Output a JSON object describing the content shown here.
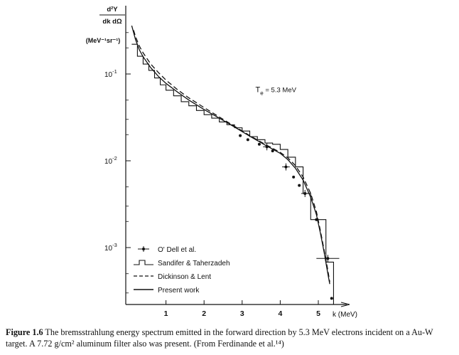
{
  "chart_data": {
    "type": "line",
    "title": "",
    "xlabel": "k (MeV)",
    "ylabel": {
      "numerator": "d²Y",
      "denominator": "dk dΩ",
      "units": "(MeV⁻¹sr⁻¹)"
    },
    "xlim": [
      0,
      5.7
    ],
    "ylim": [
      0.00015,
      0.4
    ],
    "yscale": "log",
    "x_ticks": [
      1,
      2,
      3,
      4,
      5
    ],
    "x_tick_labels": [
      "1",
      "2",
      "3",
      "4",
      "5"
    ],
    "y_ticks": [
      0.1,
      0.01,
      0.001
    ],
    "y_tick_labels": [
      {
        "base": "10",
        "exp": "-1"
      },
      {
        "base": "10",
        "exp": "-2"
      },
      {
        "base": "10",
        "exp": "-3"
      }
    ],
    "grid": false,
    "legend_position": "bottom-left",
    "annotation": {
      "main": "T",
      "sub": "e",
      "rest": " = 5.3 MeV",
      "x": 3.35,
      "y": 0.062
    },
    "series": [
      {
        "name": "O' Dell et al.",
        "kind": "points",
        "points": [
          [
            2.95,
            0.0195
          ],
          [
            3.15,
            0.0175
          ],
          [
            3.45,
            0.0155
          ],
          [
            3.65,
            0.0145
          ],
          [
            3.8,
            0.013
          ],
          [
            4.15,
            0.0085
          ],
          [
            4.35,
            0.0065
          ],
          [
            4.5,
            0.0052
          ],
          [
            4.65,
            0.0042
          ],
          [
            4.95,
            0.0021
          ],
          [
            5.25,
            0.00075
          ],
          [
            5.35,
            0.00026
          ]
        ],
        "xerr_points": [
          [
            3.65,
            0.0145,
            0.1
          ],
          [
            4.15,
            0.0085,
            0.1
          ],
          [
            4.65,
            0.0042,
            0.1
          ],
          [
            5.25,
            0.00075,
            0.3
          ]
        ]
      },
      {
        "name": "Sandifer & Taherzadeh",
        "kind": "step",
        "edges": [
          0.1,
          0.25,
          0.4,
          0.55,
          0.7,
          0.85,
          1.0,
          1.2,
          1.4,
          1.6,
          1.8,
          2.0,
          2.2,
          2.4,
          2.6,
          2.8,
          3.0,
          3.2,
          3.4,
          3.6,
          3.8,
          4.0,
          4.2,
          4.4,
          4.6,
          4.8,
          5.0,
          5.2,
          5.4
        ],
        "values": [
          0.22,
          0.16,
          0.13,
          0.11,
          0.09,
          0.075,
          0.065,
          0.056,
          0.048,
          0.043,
          0.038,
          0.034,
          0.031,
          0.028,
          0.026,
          0.024,
          0.022,
          0.019,
          0.0175,
          0.016,
          0.0155,
          0.0135,
          0.011,
          0.0085,
          0.0042,
          0.0021,
          0.0021,
          0.00068
        ]
      },
      {
        "name": "Dickinson & Lent",
        "kind": "dashed",
        "x": [
          0.15,
          0.2,
          0.3,
          0.4,
          0.6,
          0.8,
          1.0,
          1.3,
          1.6,
          2.0,
          2.4,
          2.8,
          3.2,
          3.6,
          4.0,
          4.2,
          4.4,
          4.6,
          4.8,
          4.95,
          5.05,
          5.15,
          5.25,
          5.3
        ],
        "y": [
          0.32,
          0.27,
          0.21,
          0.175,
          0.13,
          0.104,
          0.085,
          0.066,
          0.053,
          0.041,
          0.032,
          0.025,
          0.0195,
          0.0155,
          0.0125,
          0.0108,
          0.0088,
          0.0065,
          0.0042,
          0.0026,
          0.0016,
          0.00095,
          0.00055,
          0.0004
        ]
      },
      {
        "name": "Present work",
        "kind": "solid",
        "x": [
          0.1,
          0.2,
          0.3,
          0.4,
          0.6,
          0.8,
          1.0,
          1.3,
          1.6,
          2.0,
          2.4,
          2.8,
          3.2,
          3.6,
          4.0,
          4.2,
          4.4,
          4.6,
          4.8,
          4.95,
          5.05,
          5.15,
          5.25,
          5.3
        ],
        "y": [
          0.36,
          0.25,
          0.19,
          0.158,
          0.118,
          0.094,
          0.078,
          0.062,
          0.05,
          0.039,
          0.031,
          0.0245,
          0.0192,
          0.0152,
          0.0122,
          0.0103,
          0.0082,
          0.006,
          0.0038,
          0.0024,
          0.0015,
          0.0009,
          0.0005,
          0.00038
        ]
      }
    ],
    "legend": [
      {
        "label": "O' Dell et al.",
        "kind": "points"
      },
      {
        "label": "Sandifer  &  Taherzadeh",
        "kind": "step"
      },
      {
        "label": "Dickinson  &  Lent",
        "kind": "dashed"
      },
      {
        "label": "Present  work",
        "kind": "solid"
      }
    ]
  },
  "caption": {
    "label": "Figure 1.6",
    "text": " The bremsstrahlung energy spectrum emitted in the forward direction by 5.3 MeV electrons incident on a Au-W target. A 7.72 g/cm² aluminum filter also was present. (From Ferdinande et al.¹⁴)"
  }
}
